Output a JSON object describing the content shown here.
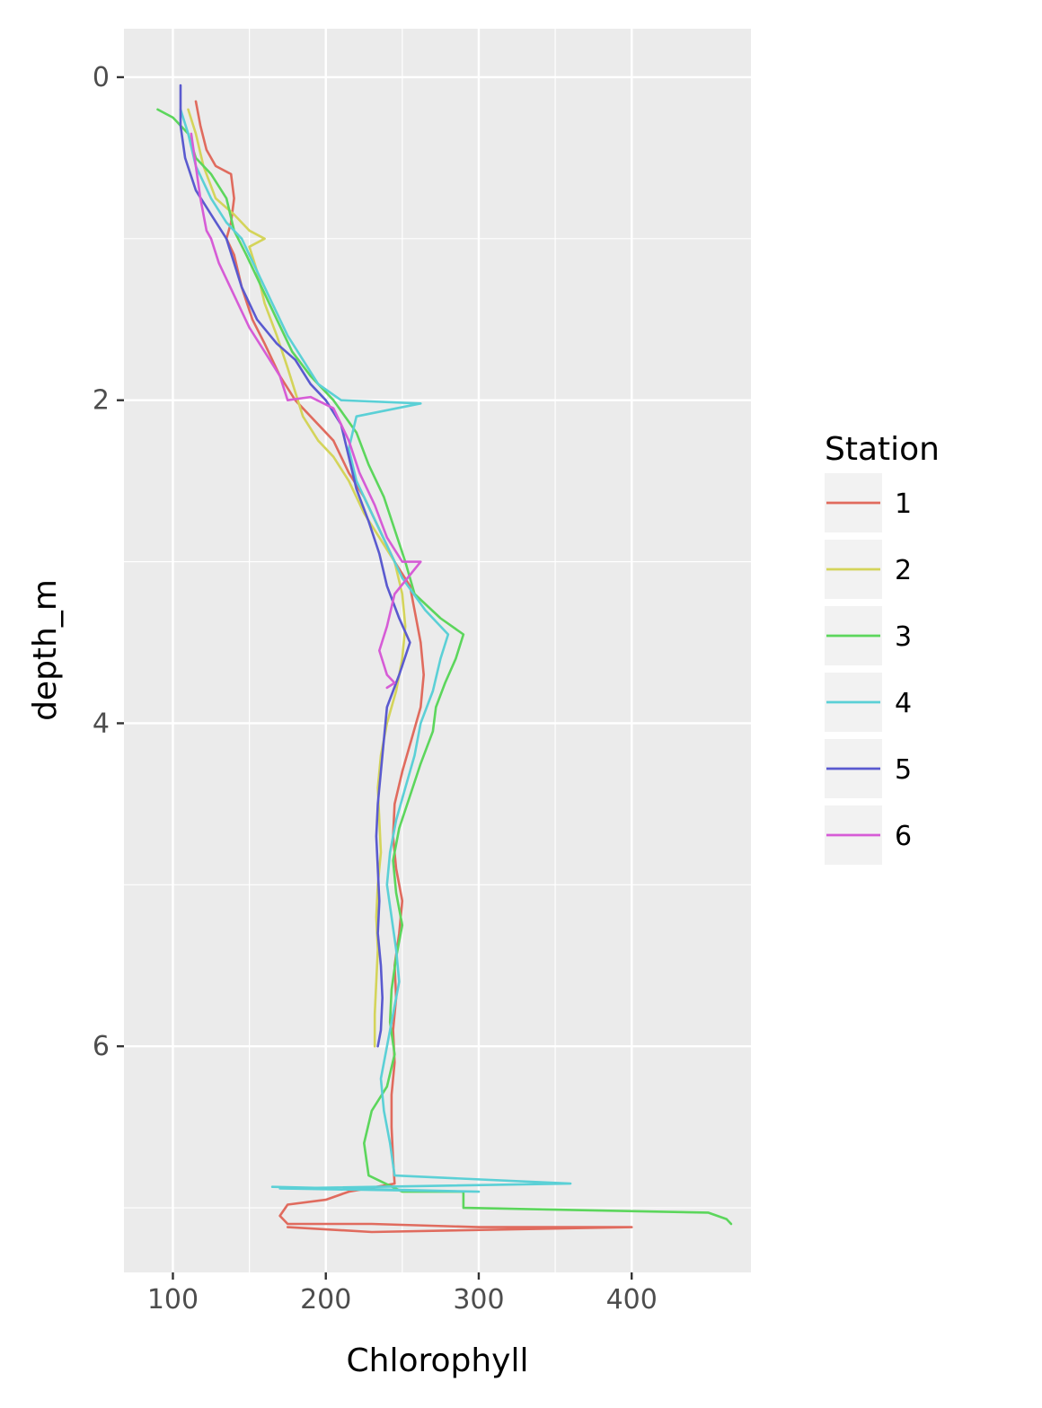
{
  "chart_data": {
    "type": "line",
    "xlabel": "Chlorophyll",
    "ylabel": "depth_m",
    "xlim": [
      68,
      478
    ],
    "ylim": [
      -0.3,
      7.4
    ],
    "y_reversed": true,
    "x_ticks": [
      100,
      200,
      300,
      400
    ],
    "y_ticks": [
      0,
      2,
      4,
      6
    ],
    "grid": true,
    "legend": {
      "title": "Station",
      "position": "right"
    },
    "series": [
      {
        "name": "1",
        "color": "#E06B5E",
        "points": [
          [
            115,
            0.15
          ],
          [
            118,
            0.3
          ],
          [
            122,
            0.45
          ],
          [
            128,
            0.55
          ],
          [
            138,
            0.6
          ],
          [
            140,
            0.75
          ],
          [
            138,
            0.9
          ],
          [
            135,
            1.0
          ],
          [
            140,
            1.1
          ],
          [
            145,
            1.3
          ],
          [
            152,
            1.5
          ],
          [
            160,
            1.65
          ],
          [
            170,
            1.85
          ],
          [
            180,
            2.0
          ],
          [
            190,
            2.1
          ],
          [
            205,
            2.25
          ],
          [
            215,
            2.45
          ],
          [
            225,
            2.6
          ],
          [
            235,
            2.8
          ],
          [
            245,
            3.0
          ],
          [
            255,
            3.15
          ],
          [
            258,
            3.3
          ],
          [
            262,
            3.5
          ],
          [
            264,
            3.7
          ],
          [
            262,
            3.9
          ],
          [
            256,
            4.1
          ],
          [
            250,
            4.3
          ],
          [
            245,
            4.5
          ],
          [
            244,
            4.7
          ],
          [
            246,
            4.9
          ],
          [
            250,
            5.1
          ],
          [
            248,
            5.3
          ],
          [
            245,
            5.5
          ],
          [
            246,
            5.7
          ],
          [
            244,
            5.9
          ],
          [
            245,
            6.1
          ],
          [
            243,
            6.3
          ],
          [
            243,
            6.5
          ],
          [
            244,
            6.7
          ],
          [
            245,
            6.85
          ],
          [
            215,
            6.9
          ],
          [
            200,
            6.95
          ],
          [
            175,
            6.98
          ],
          [
            170,
            7.05
          ],
          [
            175,
            7.1
          ],
          [
            230,
            7.1
          ],
          [
            300,
            7.12
          ],
          [
            400,
            7.12
          ],
          [
            230,
            7.15
          ],
          [
            175,
            7.12
          ]
        ]
      },
      {
        "name": "2",
        "color": "#D4D45A",
        "points": [
          [
            110,
            0.2
          ],
          [
            115,
            0.35
          ],
          [
            120,
            0.55
          ],
          [
            128,
            0.75
          ],
          [
            140,
            0.85
          ],
          [
            150,
            0.95
          ],
          [
            160,
            1.0
          ],
          [
            150,
            1.05
          ],
          [
            155,
            1.2
          ],
          [
            160,
            1.4
          ],
          [
            168,
            1.6
          ],
          [
            175,
            1.8
          ],
          [
            180,
            1.95
          ],
          [
            185,
            2.1
          ],
          [
            195,
            2.25
          ],
          [
            205,
            2.35
          ],
          [
            215,
            2.5
          ],
          [
            225,
            2.7
          ],
          [
            235,
            2.85
          ],
          [
            245,
            3.0
          ],
          [
            250,
            3.2
          ],
          [
            252,
            3.4
          ],
          [
            250,
            3.6
          ],
          [
            246,
            3.8
          ],
          [
            240,
            4.0
          ],
          [
            236,
            4.2
          ],
          [
            234,
            4.4
          ],
          [
            235,
            4.6
          ],
          [
            236,
            4.8
          ],
          [
            234,
            5.0
          ],
          [
            233,
            5.2
          ],
          [
            234,
            5.4
          ],
          [
            233,
            5.6
          ],
          [
            232,
            5.8
          ],
          [
            232,
            6.0
          ]
        ]
      },
      {
        "name": "3",
        "color": "#5CD65C",
        "points": [
          [
            90,
            0.2
          ],
          [
            100,
            0.25
          ],
          [
            110,
            0.35
          ],
          [
            115,
            0.5
          ],
          [
            125,
            0.6
          ],
          [
            135,
            0.75
          ],
          [
            140,
            0.95
          ],
          [
            148,
            1.1
          ],
          [
            158,
            1.3
          ],
          [
            168,
            1.5
          ],
          [
            178,
            1.7
          ],
          [
            190,
            1.85
          ],
          [
            205,
            2.0
          ],
          [
            220,
            2.2
          ],
          [
            228,
            2.4
          ],
          [
            238,
            2.6
          ],
          [
            245,
            2.8
          ],
          [
            252,
            3.0
          ],
          [
            258,
            3.2
          ],
          [
            275,
            3.35
          ],
          [
            290,
            3.45
          ],
          [
            285,
            3.6
          ],
          [
            278,
            3.75
          ],
          [
            272,
            3.9
          ],
          [
            270,
            4.05
          ],
          [
            262,
            4.25
          ],
          [
            255,
            4.45
          ],
          [
            248,
            4.65
          ],
          [
            244,
            4.85
          ],
          [
            246,
            5.05
          ],
          [
            250,
            5.25
          ],
          [
            246,
            5.45
          ],
          [
            243,
            5.65
          ],
          [
            242,
            5.85
          ],
          [
            245,
            6.05
          ],
          [
            240,
            6.25
          ],
          [
            230,
            6.4
          ],
          [
            225,
            6.6
          ],
          [
            228,
            6.8
          ],
          [
            250,
            6.9
          ],
          [
            290,
            6.9
          ],
          [
            290,
            7.0
          ],
          [
            450,
            7.03
          ],
          [
            462,
            7.07
          ],
          [
            465,
            7.1
          ]
        ]
      },
      {
        "name": "4",
        "color": "#5BD0D6",
        "points": [
          [
            105,
            0.2
          ],
          [
            110,
            0.35
          ],
          [
            115,
            0.55
          ],
          [
            125,
            0.75
          ],
          [
            135,
            0.9
          ],
          [
            145,
            1.0
          ],
          [
            155,
            1.2
          ],
          [
            165,
            1.4
          ],
          [
            175,
            1.6
          ],
          [
            185,
            1.75
          ],
          [
            195,
            1.9
          ],
          [
            210,
            2.0
          ],
          [
            262,
            2.02
          ],
          [
            220,
            2.1
          ],
          [
            215,
            2.3
          ],
          [
            220,
            2.5
          ],
          [
            230,
            2.7
          ],
          [
            240,
            2.9
          ],
          [
            250,
            3.1
          ],
          [
            265,
            3.3
          ],
          [
            280,
            3.45
          ],
          [
            275,
            3.6
          ],
          [
            270,
            3.8
          ],
          [
            262,
            4.0
          ],
          [
            258,
            4.2
          ],
          [
            252,
            4.4
          ],
          [
            246,
            4.6
          ],
          [
            242,
            4.8
          ],
          [
            240,
            5.0
          ],
          [
            243,
            5.2
          ],
          [
            246,
            5.4
          ],
          [
            248,
            5.6
          ],
          [
            244,
            5.8
          ],
          [
            240,
            6.0
          ],
          [
            236,
            6.2
          ],
          [
            238,
            6.4
          ],
          [
            242,
            6.6
          ],
          [
            245,
            6.8
          ],
          [
            360,
            6.85
          ],
          [
            170,
            6.88
          ],
          [
            300,
            6.9
          ],
          [
            165,
            6.87
          ]
        ]
      },
      {
        "name": "5",
        "color": "#5A5ACF",
        "points": [
          [
            105,
            0.05
          ],
          [
            105,
            0.3
          ],
          [
            108,
            0.5
          ],
          [
            115,
            0.7
          ],
          [
            125,
            0.85
          ],
          [
            135,
            1.0
          ],
          [
            140,
            1.15
          ],
          [
            145,
            1.3
          ],
          [
            155,
            1.5
          ],
          [
            168,
            1.65
          ],
          [
            180,
            1.75
          ],
          [
            190,
            1.9
          ],
          [
            200,
            2.0
          ],
          [
            210,
            2.15
          ],
          [
            215,
            2.35
          ],
          [
            220,
            2.55
          ],
          [
            228,
            2.75
          ],
          [
            235,
            2.95
          ],
          [
            240,
            3.15
          ],
          [
            248,
            3.35
          ],
          [
            255,
            3.5
          ],
          [
            248,
            3.7
          ],
          [
            240,
            3.9
          ],
          [
            238,
            4.1
          ],
          [
            236,
            4.3
          ],
          [
            234,
            4.5
          ],
          [
            233,
            4.7
          ],
          [
            234,
            4.9
          ],
          [
            235,
            5.1
          ],
          [
            234,
            5.3
          ],
          [
            236,
            5.5
          ],
          [
            237,
            5.7
          ],
          [
            236,
            5.9
          ],
          [
            234,
            6.0
          ]
        ]
      },
      {
        "name": "6",
        "color": "#D65CD6",
        "points": [
          [
            112,
            0.35
          ],
          [
            115,
            0.55
          ],
          [
            118,
            0.75
          ],
          [
            122,
            0.95
          ],
          [
            125,
            1.0
          ],
          [
            130,
            1.15
          ],
          [
            140,
            1.35
          ],
          [
            150,
            1.55
          ],
          [
            160,
            1.7
          ],
          [
            170,
            1.85
          ],
          [
            175,
            2.0
          ],
          [
            190,
            1.98
          ],
          [
            205,
            2.05
          ],
          [
            215,
            2.25
          ],
          [
            222,
            2.45
          ],
          [
            232,
            2.65
          ],
          [
            240,
            2.85
          ],
          [
            250,
            3.0
          ],
          [
            262,
            3.0
          ],
          [
            245,
            3.2
          ],
          [
            240,
            3.4
          ],
          [
            235,
            3.55
          ],
          [
            240,
            3.7
          ],
          [
            245,
            3.75
          ],
          [
            240,
            3.78
          ]
        ]
      }
    ]
  }
}
